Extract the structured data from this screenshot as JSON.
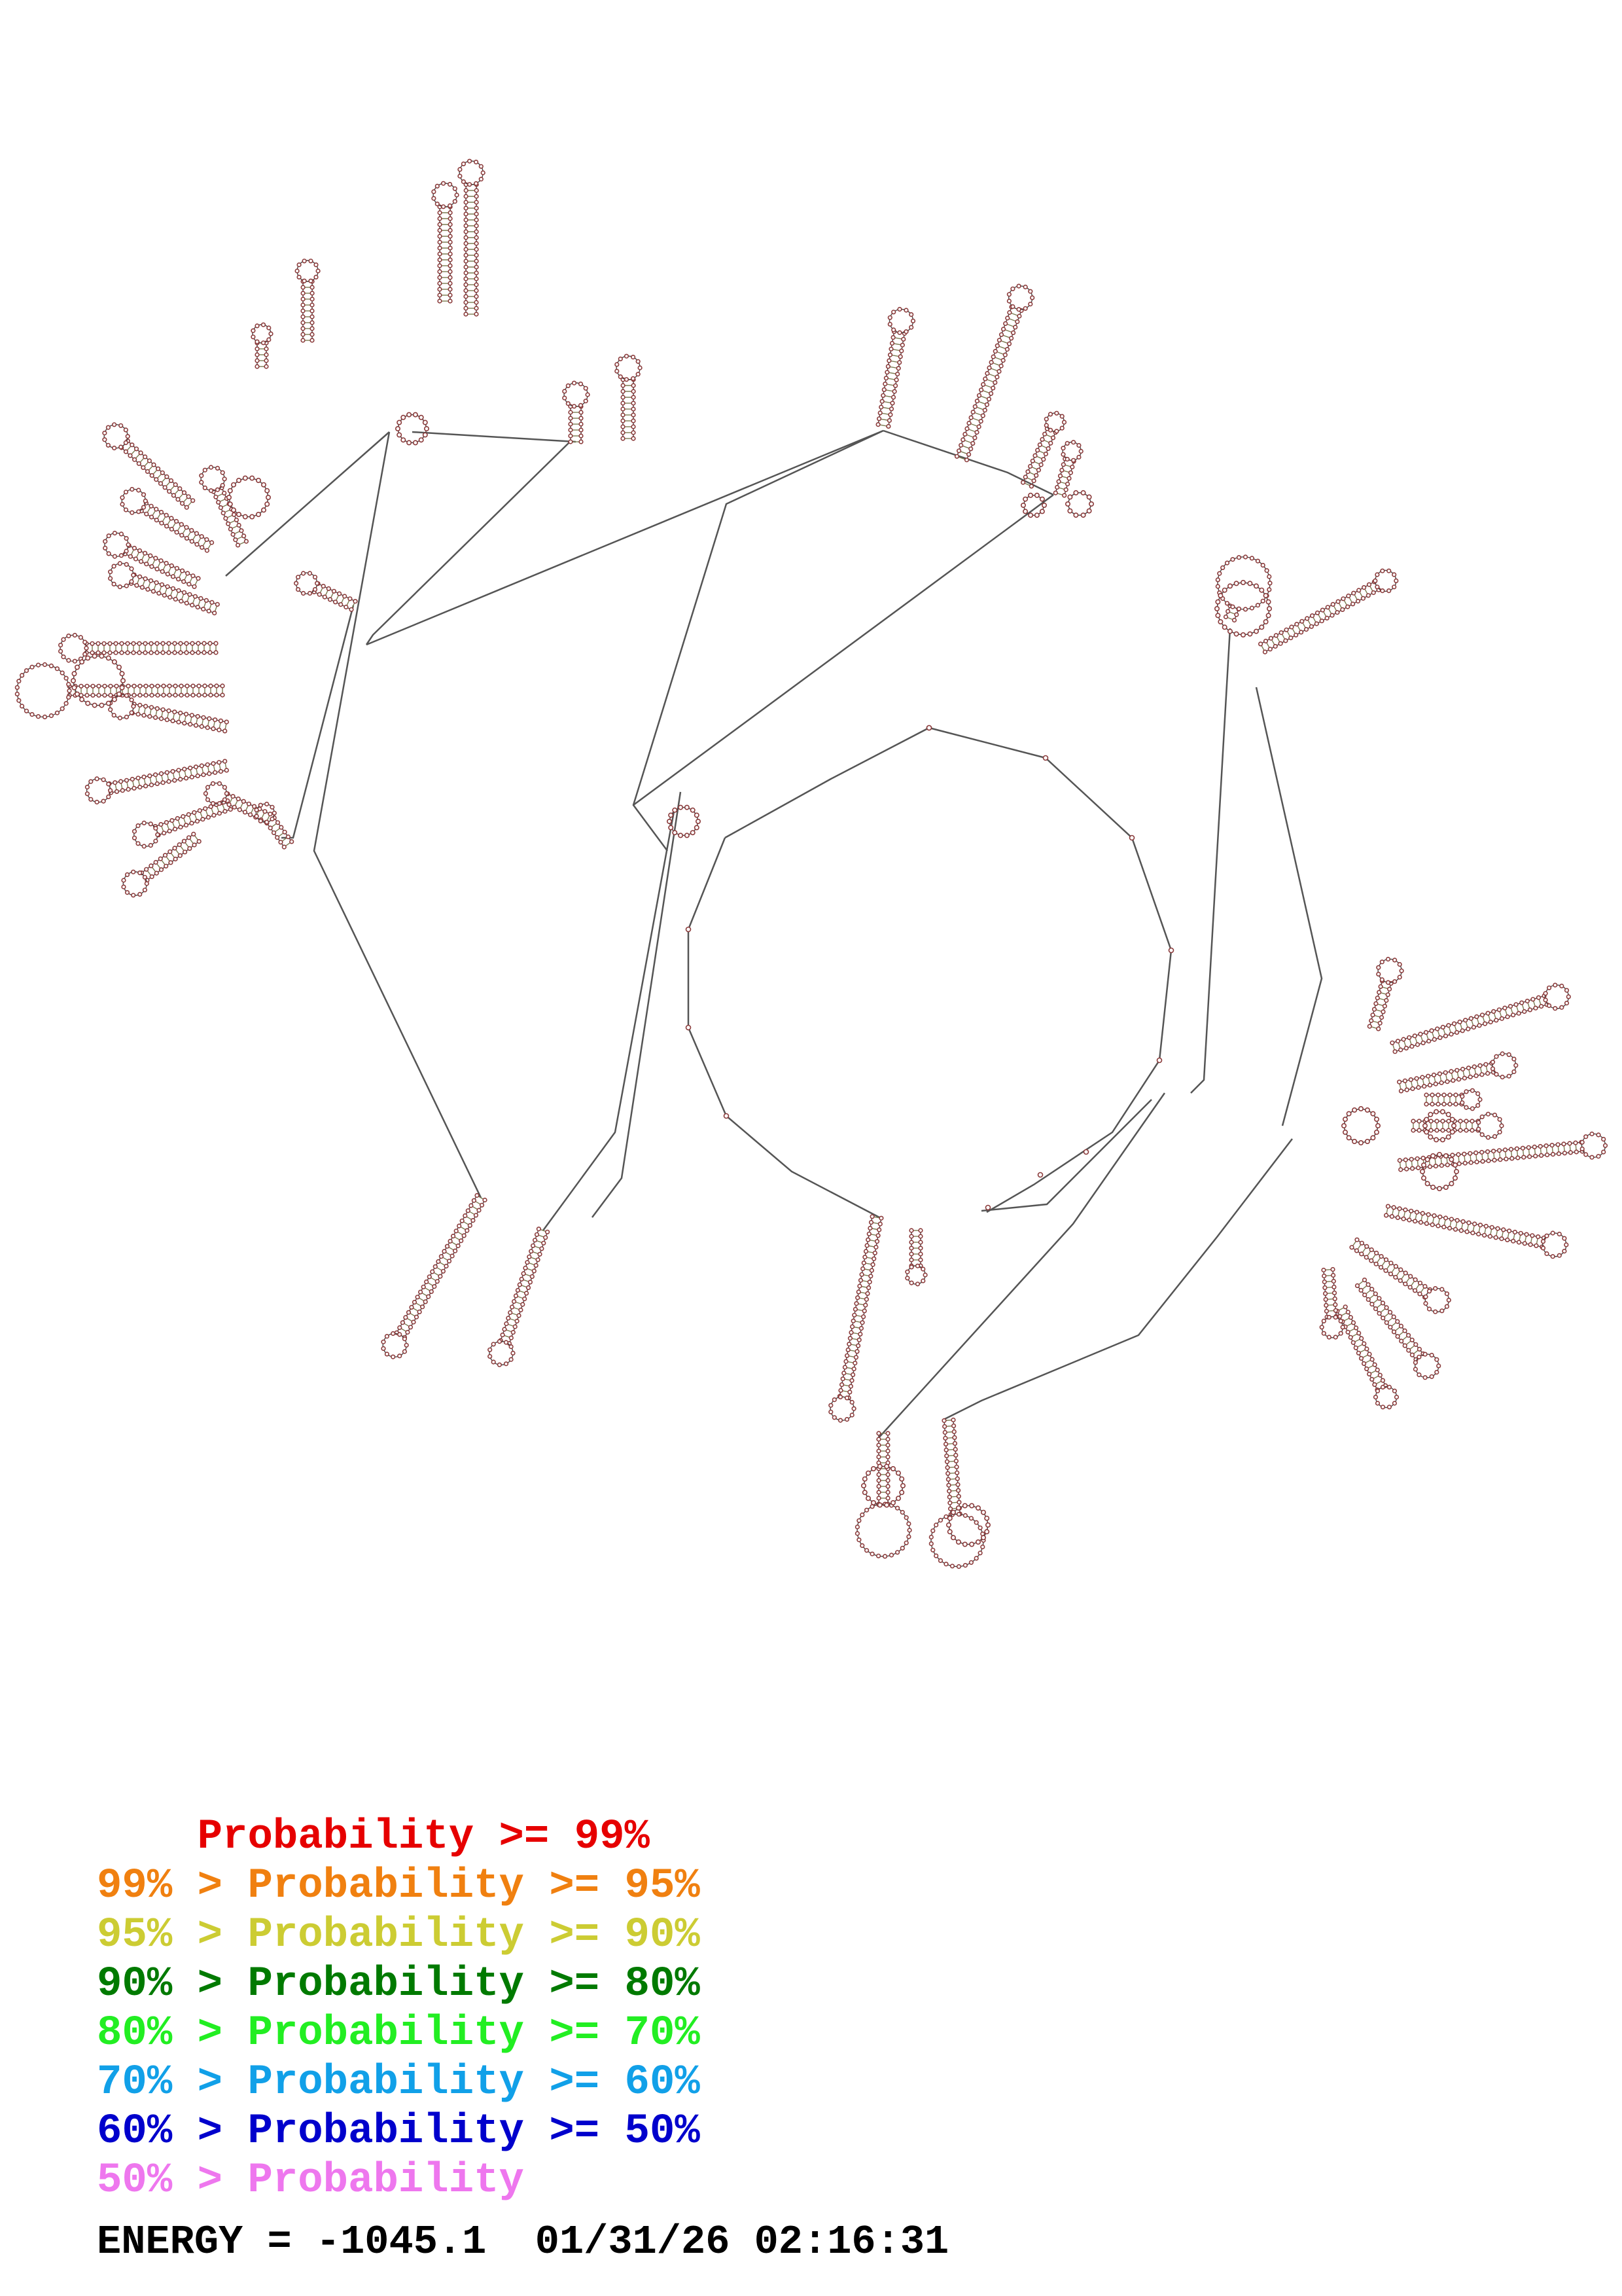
{
  "legend": {
    "rows": [
      {
        "prefix": "    ",
        "label": "Probability",
        "suffix": " >= 99%",
        "color": "#e60000"
      },
      {
        "prefix": "99% > ",
        "label": "Probability",
        "suffix": " >= 95%",
        "color": "#f08010"
      },
      {
        "prefix": "95% > ",
        "label": "Probability",
        "suffix": " >= 90%",
        "color": "#cccc33"
      },
      {
        "prefix": "90% > ",
        "label": "Probability",
        "suffix": " >= 80%",
        "color": "#007a00"
      },
      {
        "prefix": "80% > ",
        "label": "Probability",
        "suffix": " >= 70%",
        "color": "#22ee22"
      },
      {
        "prefix": "70% > ",
        "label": "Probability",
        "suffix": " >= 60%",
        "color": "#11a0e8"
      },
      {
        "prefix": "60% > ",
        "label": "Probability",
        "suffix": " >= 50%",
        "color": "#0000cc"
      },
      {
        "prefix": "50% > ",
        "label": "Probability",
        "suffix": "",
        "color": "#ee77ee"
      }
    ]
  },
  "footer": {
    "energy_label": "ENERGY =",
    "energy_value": "-1045.1",
    "datetime": "01/31/26 02:16:31"
  },
  "colors": {
    "backbone": "#555555",
    "nucleotide": "#8a3a3a",
    "stem_pair": "#7a7a50"
  }
}
